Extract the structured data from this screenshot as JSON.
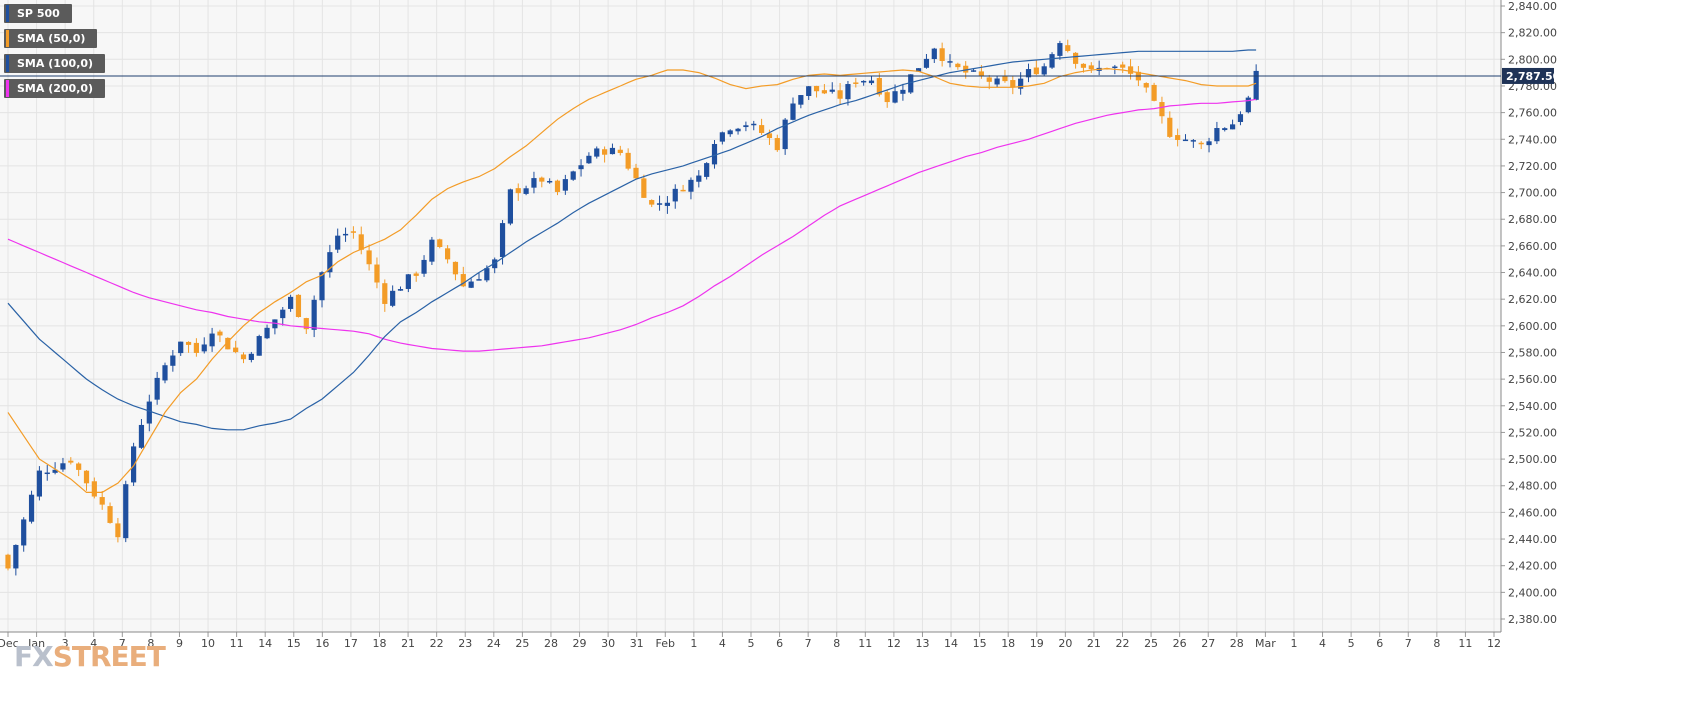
{
  "chart_data": {
    "type": "candlestick",
    "symbol_label": "SP 500",
    "ylim": [
      2380,
      2840
    ],
    "y_ticks": [
      "2,380.00",
      "2,400.00",
      "2,420.00",
      "2,440.00",
      "2,460.00",
      "2,480.00",
      "2,500.00",
      "2,520.00",
      "2,540.00",
      "2,560.00",
      "2,580.00",
      "2,600.00",
      "2,620.00",
      "2,640.00",
      "2,660.00",
      "2,680.00",
      "2,700.00",
      "2,720.00",
      "2,740.00",
      "2,760.00",
      "2,780.00",
      "2,800.00",
      "2,820.00",
      "2,840.00"
    ],
    "x_ticks": [
      "Dec",
      "Jan",
      "3",
      "4",
      "7",
      "8",
      "9",
      "10",
      "11",
      "14",
      "15",
      "16",
      "17",
      "18",
      "21",
      "22",
      "23",
      "24",
      "25",
      "28",
      "29",
      "30",
      "31",
      "Feb",
      "1",
      "4",
      "5",
      "6",
      "7",
      "8",
      "11",
      "12",
      "13",
      "14",
      "15",
      "18",
      "19",
      "20",
      "21",
      "22",
      "25",
      "26",
      "27",
      "28",
      "Mar",
      "1",
      "4",
      "5",
      "6",
      "7",
      "8",
      "11",
      "12"
    ],
    "current_price": 2787.5,
    "current_price_label": "2,787.50",
    "colors": {
      "up": "#1f4f9e",
      "down": "#f39c27",
      "sma50": "#f39c27",
      "sma100": "#2a62a6",
      "sma200": "#ee33ee",
      "grid": "#e4e4e4",
      "price_line": "#1f3f6f"
    },
    "legend": [
      {
        "label": "SP 500",
        "color": "#1f4f9e"
      },
      {
        "label": "SMA (50,0)",
        "color": "#f39c27"
      },
      {
        "label": "SMA (100,0)",
        "color": "#1f4f9e"
      },
      {
        "label": "SMA (200,0)",
        "color": "#ee33ee"
      }
    ],
    "close_path": [
      [
        0,
        2418
      ],
      [
        4,
        2490
      ],
      [
        8,
        2500
      ],
      [
        10,
        2483
      ],
      [
        12,
        2465
      ],
      [
        14,
        2445
      ],
      [
        16,
        2510
      ],
      [
        18,
        2545
      ],
      [
        20,
        2570
      ],
      [
        22,
        2590
      ],
      [
        24,
        2580
      ],
      [
        26,
        2598
      ],
      [
        28,
        2585
      ],
      [
        30,
        2575
      ],
      [
        32,
        2590
      ],
      [
        34,
        2605
      ],
      [
        36,
        2620
      ],
      [
        38,
        2600
      ],
      [
        40,
        2640
      ],
      [
        42,
        2668
      ],
      [
        44,
        2670
      ],
      [
        46,
        2645
      ],
      [
        48,
        2620
      ],
      [
        50,
        2630
      ],
      [
        52,
        2640
      ],
      [
        54,
        2662
      ],
      [
        56,
        2650
      ],
      [
        58,
        2630
      ],
      [
        60,
        2638
      ],
      [
        62,
        2648
      ],
      [
        64,
        2700
      ],
      [
        66,
        2705
      ],
      [
        68,
        2710
      ],
      [
        70,
        2700
      ],
      [
        72,
        2715
      ],
      [
        74,
        2728
      ],
      [
        76,
        2732
      ],
      [
        78,
        2730
      ],
      [
        80,
        2710
      ],
      [
        82,
        2690
      ],
      [
        84,
        2695
      ],
      [
        86,
        2705
      ],
      [
        88,
        2712
      ],
      [
        90,
        2740
      ],
      [
        92,
        2750
      ],
      [
        94,
        2752
      ],
      [
        96,
        2745
      ],
      [
        98,
        2735
      ],
      [
        100,
        2770
      ],
      [
        102,
        2778
      ],
      [
        104,
        2775
      ],
      [
        106,
        2772
      ],
      [
        108,
        2785
      ],
      [
        110,
        2785
      ],
      [
        112,
        2770
      ],
      [
        114,
        2780
      ],
      [
        116,
        2795
      ],
      [
        118,
        2810
      ],
      [
        120,
        2795
      ],
      [
        122,
        2790
      ],
      [
        124,
        2786
      ],
      [
        126,
        2782
      ],
      [
        128,
        2780
      ],
      [
        130,
        2790
      ],
      [
        132,
        2795
      ],
      [
        134,
        2815
      ],
      [
        136,
        2800
      ],
      [
        138,
        2790
      ],
      [
        140,
        2795
      ],
      [
        142,
        2792
      ],
      [
        144,
        2785
      ],
      [
        146,
        2765
      ],
      [
        148,
        2745
      ],
      [
        150,
        2740
      ],
      [
        152,
        2735
      ],
      [
        154,
        2748
      ],
      [
        156,
        2752
      ],
      [
        158,
        2770
      ],
      [
        159,
        2787.5
      ]
    ],
    "sma50": [
      [
        0,
        2535
      ],
      [
        4,
        2500
      ],
      [
        8,
        2485
      ],
      [
        10,
        2475
      ],
      [
        12,
        2475
      ],
      [
        14,
        2482
      ],
      [
        16,
        2495
      ],
      [
        18,
        2515
      ],
      [
        20,
        2535
      ],
      [
        22,
        2550
      ],
      [
        24,
        2560
      ],
      [
        26,
        2575
      ],
      [
        28,
        2588
      ],
      [
        30,
        2600
      ],
      [
        32,
        2610
      ],
      [
        34,
        2618
      ],
      [
        36,
        2625
      ],
      [
        38,
        2633
      ],
      [
        40,
        2638
      ],
      [
        42,
        2648
      ],
      [
        44,
        2655
      ],
      [
        46,
        2660
      ],
      [
        48,
        2665
      ],
      [
        50,
        2672
      ],
      [
        52,
        2683
      ],
      [
        54,
        2695
      ],
      [
        56,
        2703
      ],
      [
        58,
        2708
      ],
      [
        60,
        2712
      ],
      [
        62,
        2718
      ],
      [
        64,
        2727
      ],
      [
        66,
        2735
      ],
      [
        68,
        2745
      ],
      [
        70,
        2755
      ],
      [
        72,
        2763
      ],
      [
        74,
        2770
      ],
      [
        76,
        2775
      ],
      [
        78,
        2780
      ],
      [
        80,
        2785
      ],
      [
        82,
        2788
      ],
      [
        84,
        2792
      ],
      [
        86,
        2792
      ],
      [
        88,
        2790
      ],
      [
        90,
        2786
      ],
      [
        92,
        2781
      ],
      [
        94,
        2778
      ],
      [
        96,
        2780
      ],
      [
        98,
        2781
      ],
      [
        100,
        2785
      ],
      [
        102,
        2788
      ],
      [
        104,
        2789
      ],
      [
        106,
        2788
      ],
      [
        108,
        2789
      ],
      [
        110,
        2790
      ],
      [
        112,
        2791
      ],
      [
        114,
        2792
      ],
      [
        116,
        2791
      ],
      [
        118,
        2787
      ],
      [
        120,
        2782
      ],
      [
        122,
        2780
      ],
      [
        124,
        2779
      ],
      [
        126,
        2779
      ],
      [
        128,
        2779
      ],
      [
        130,
        2780
      ],
      [
        132,
        2782
      ],
      [
        134,
        2787
      ],
      [
        136,
        2790
      ],
      [
        138,
        2792
      ],
      [
        140,
        2793
      ],
      [
        142,
        2792
      ],
      [
        144,
        2790
      ],
      [
        146,
        2788
      ],
      [
        148,
        2786
      ],
      [
        150,
        2784
      ],
      [
        152,
        2781
      ],
      [
        154,
        2780
      ],
      [
        156,
        2780
      ],
      [
        158,
        2780
      ],
      [
        159,
        2782
      ]
    ],
    "sma100": [
      [
        0,
        2617
      ],
      [
        4,
        2590
      ],
      [
        8,
        2570
      ],
      [
        10,
        2560
      ],
      [
        12,
        2552
      ],
      [
        14,
        2545
      ],
      [
        16,
        2540
      ],
      [
        18,
        2536
      ],
      [
        20,
        2532
      ],
      [
        22,
        2528
      ],
      [
        24,
        2526
      ],
      [
        26,
        2523
      ],
      [
        28,
        2522
      ],
      [
        30,
        2522
      ],
      [
        32,
        2525
      ],
      [
        34,
        2527
      ],
      [
        36,
        2530
      ],
      [
        38,
        2538
      ],
      [
        40,
        2545
      ],
      [
        42,
        2555
      ],
      [
        44,
        2565
      ],
      [
        46,
        2578
      ],
      [
        48,
        2592
      ],
      [
        50,
        2603
      ],
      [
        52,
        2610
      ],
      [
        54,
        2618
      ],
      [
        56,
        2625
      ],
      [
        58,
        2632
      ],
      [
        60,
        2640
      ],
      [
        62,
        2647
      ],
      [
        64,
        2655
      ],
      [
        66,
        2663
      ],
      [
        68,
        2670
      ],
      [
        70,
        2677
      ],
      [
        72,
        2685
      ],
      [
        74,
        2692
      ],
      [
        76,
        2698
      ],
      [
        78,
        2704
      ],
      [
        80,
        2710
      ],
      [
        82,
        2714
      ],
      [
        84,
        2717
      ],
      [
        86,
        2720
      ],
      [
        88,
        2724
      ],
      [
        90,
        2728
      ],
      [
        92,
        2732
      ],
      [
        94,
        2737
      ],
      [
        96,
        2742
      ],
      [
        98,
        2748
      ],
      [
        100,
        2753
      ],
      [
        102,
        2758
      ],
      [
        104,
        2762
      ],
      [
        106,
        2766
      ],
      [
        108,
        2769
      ],
      [
        110,
        2773
      ],
      [
        112,
        2777
      ],
      [
        114,
        2781
      ],
      [
        116,
        2784
      ],
      [
        118,
        2787
      ],
      [
        120,
        2790
      ],
      [
        122,
        2792
      ],
      [
        124,
        2794
      ],
      [
        126,
        2796
      ],
      [
        128,
        2798
      ],
      [
        130,
        2799
      ],
      [
        132,
        2800
      ],
      [
        134,
        2801
      ],
      [
        136,
        2802
      ],
      [
        138,
        2803
      ],
      [
        140,
        2804
      ],
      [
        142,
        2805
      ],
      [
        144,
        2806
      ],
      [
        146,
        2806
      ],
      [
        148,
        2806
      ],
      [
        150,
        2806
      ],
      [
        152,
        2806
      ],
      [
        154,
        2806
      ],
      [
        156,
        2806
      ],
      [
        158,
        2807
      ],
      [
        159,
        2807
      ]
    ],
    "sma200": [
      [
        0,
        2665
      ],
      [
        4,
        2655
      ],
      [
        8,
        2645
      ],
      [
        10,
        2640
      ],
      [
        12,
        2635
      ],
      [
        14,
        2630
      ],
      [
        16,
        2625
      ],
      [
        18,
        2621
      ],
      [
        20,
        2618
      ],
      [
        22,
        2615
      ],
      [
        24,
        2612
      ],
      [
        26,
        2610
      ],
      [
        28,
        2607
      ],
      [
        30,
        2605
      ],
      [
        32,
        2603
      ],
      [
        34,
        2602
      ],
      [
        36,
        2600
      ],
      [
        38,
        2599
      ],
      [
        40,
        2598
      ],
      [
        42,
        2597
      ],
      [
        44,
        2596
      ],
      [
        46,
        2594
      ],
      [
        48,
        2590
      ],
      [
        50,
        2587
      ],
      [
        52,
        2585
      ],
      [
        54,
        2583
      ],
      [
        56,
        2582
      ],
      [
        58,
        2581
      ],
      [
        60,
        2581
      ],
      [
        62,
        2582
      ],
      [
        64,
        2583
      ],
      [
        66,
        2584
      ],
      [
        68,
        2585
      ],
      [
        70,
        2587
      ],
      [
        72,
        2589
      ],
      [
        74,
        2591
      ],
      [
        76,
        2594
      ],
      [
        78,
        2597
      ],
      [
        80,
        2601
      ],
      [
        82,
        2606
      ],
      [
        84,
        2610
      ],
      [
        86,
        2615
      ],
      [
        88,
        2622
      ],
      [
        90,
        2630
      ],
      [
        92,
        2637
      ],
      [
        94,
        2645
      ],
      [
        96,
        2653
      ],
      [
        98,
        2660
      ],
      [
        100,
        2667
      ],
      [
        102,
        2675
      ],
      [
        104,
        2683
      ],
      [
        106,
        2690
      ],
      [
        108,
        2695
      ],
      [
        110,
        2700
      ],
      [
        112,
        2705
      ],
      [
        114,
        2710
      ],
      [
        116,
        2715
      ],
      [
        118,
        2719
      ],
      [
        120,
        2723
      ],
      [
        122,
        2727
      ],
      [
        124,
        2730
      ],
      [
        126,
        2734
      ],
      [
        128,
        2737
      ],
      [
        130,
        2740
      ],
      [
        132,
        2744
      ],
      [
        134,
        2748
      ],
      [
        136,
        2752
      ],
      [
        138,
        2755
      ],
      [
        140,
        2758
      ],
      [
        142,
        2760
      ],
      [
        144,
        2762
      ],
      [
        146,
        2763
      ],
      [
        148,
        2765
      ],
      [
        150,
        2766
      ],
      [
        152,
        2767
      ],
      [
        154,
        2767
      ],
      [
        156,
        2768
      ],
      [
        158,
        2769
      ],
      [
        159,
        2770
      ]
    ]
  },
  "watermark": {
    "part1": "FX",
    "part2": "STREET"
  }
}
